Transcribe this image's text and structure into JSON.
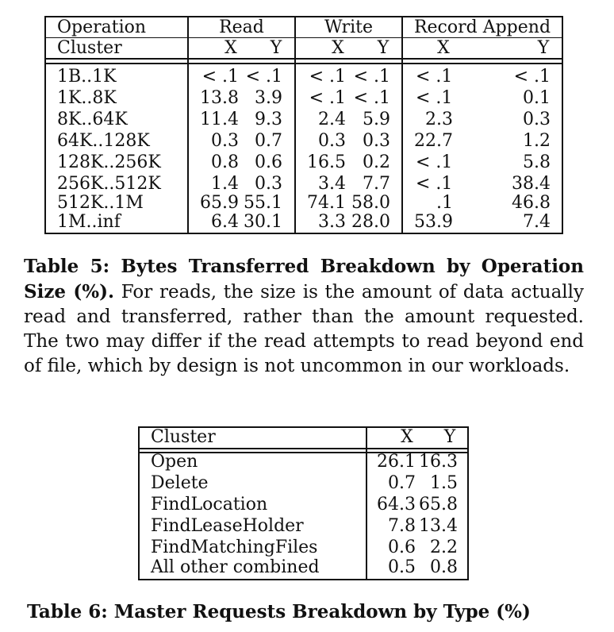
{
  "table5": {
    "header1": {
      "operation": "Operation",
      "read": "Read",
      "write": "Write",
      "record_append": "Record Append"
    },
    "header2": {
      "cluster": "Cluster",
      "read_x": "X",
      "read_y": "Y",
      "write_x": "X",
      "write_y": "Y",
      "ra_x": "X",
      "ra_y": "Y"
    },
    "rows": [
      {
        "size": "1B..1K",
        "read_x": "< .1",
        "read_y": "< .1",
        "write_x": "< .1",
        "write_y": "< .1",
        "ra_x": "< .1",
        "ra_y": "< .1"
      },
      {
        "size": "1K..8K",
        "read_x": "13.8",
        "read_y": "3.9",
        "write_x": "< .1",
        "write_y": "< .1",
        "ra_x": "< .1",
        "ra_y": "0.1"
      },
      {
        "size": "8K..64K",
        "read_x": "11.4",
        "read_y": "9.3",
        "write_x": "2.4",
        "write_y": "5.9",
        "ra_x": "2.3",
        "ra_y": "0.3"
      },
      {
        "size": "64K..128K",
        "read_x": "0.3",
        "read_y": "0.7",
        "write_x": "0.3",
        "write_y": "0.3",
        "ra_x": "22.7",
        "ra_y": "1.2"
      },
      {
        "size": "128K..256K",
        "read_x": "0.8",
        "read_y": "0.6",
        "write_x": "16.5",
        "write_y": "0.2",
        "ra_x": "< .1",
        "ra_y": "5.8"
      },
      {
        "size": "256K..512K",
        "read_x": "1.4",
        "read_y": "0.3",
        "write_x": "3.4",
        "write_y": "7.7",
        "ra_x": "< .1",
        "ra_y": "38.4"
      },
      {
        "size": "512K..1M",
        "read_x": "65.9",
        "read_y": "55.1",
        "write_x": "74.1",
        "write_y": "58.0",
        "ra_x": ".1",
        "ra_y": "46.8"
      },
      {
        "size": "1M..inf",
        "read_x": "6.4",
        "read_y": "30.1",
        "write_x": "3.3",
        "write_y": "28.0",
        "ra_x": "53.9",
        "ra_y": "7.4"
      }
    ],
    "caption_title": "Table 5: Bytes Transferred Breakdown by Operation Size (%).",
    "caption_body": "For reads, the size is the amount of data actually read and transferred, rather than the amount requested. The two may differ if the read attempts to read beyond end of file, which by design is not uncommon in our workloads."
  },
  "table6": {
    "header": {
      "cluster": "Cluster",
      "x": "X",
      "y": "Y"
    },
    "rows": [
      {
        "type": "Open",
        "x": "26.1",
        "y": "16.3"
      },
      {
        "type": "Delete",
        "x": "0.7",
        "y": "1.5"
      },
      {
        "type": "FindLocation",
        "x": "64.3",
        "y": "65.8"
      },
      {
        "type": "FindLeaseHolder",
        "x": "7.8",
        "y": "13.4"
      },
      {
        "type": "FindMatchingFiles",
        "x": "0.6",
        "y": "2.2"
      },
      {
        "type": "All other combined",
        "x": "0.5",
        "y": "0.8"
      }
    ],
    "caption": "Table 6: Master Requests Breakdown by Type (%)"
  }
}
